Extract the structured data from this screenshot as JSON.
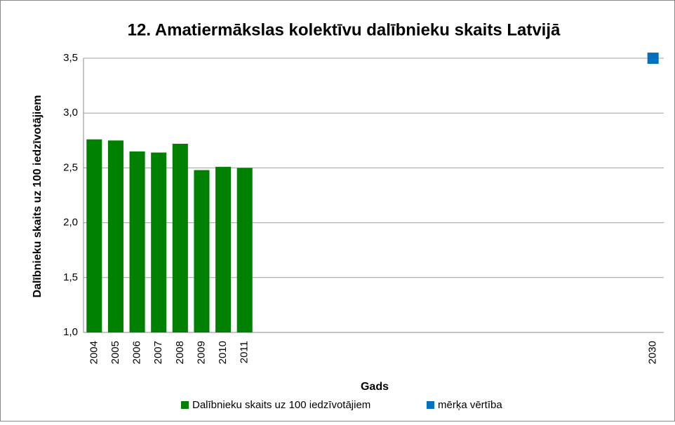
{
  "chart_data": {
    "type": "bar",
    "title": "12. Amatiermākslas kolektīvu dalībnieku skaits Latvijā",
    "x_label": "Gads",
    "y_label": "Dalībnieku skaits uz 100 iedzīvotājiem",
    "categories": [
      "2004",
      "2005",
      "2006",
      "2007",
      "2008",
      "2009",
      "2010",
      "2011",
      null,
      null,
      null,
      null,
      null,
      null,
      null,
      null,
      null,
      null,
      null,
      null,
      null,
      null,
      null,
      null,
      null,
      null,
      "2030"
    ],
    "series": [
      {
        "name": "Dalībnieku skaits uz 100 iedzīvotājiem",
        "type": "bar",
        "color": "#008000",
        "values": [
          2.76,
          2.75,
          2.65,
          2.64,
          2.72,
          2.48,
          2.51,
          2.5,
          null,
          null,
          null,
          null,
          null,
          null,
          null,
          null,
          null,
          null,
          null,
          null,
          null,
          null,
          null,
          null,
          null,
          null,
          null
        ]
      },
      {
        "name": "mērķa vērtība",
        "type": "marker",
        "color": "#0070c0",
        "values": [
          null,
          null,
          null,
          null,
          null,
          null,
          null,
          null,
          null,
          null,
          null,
          null,
          null,
          null,
          null,
          null,
          null,
          null,
          null,
          null,
          null,
          null,
          null,
          null,
          null,
          null,
          3.5
        ]
      }
    ],
    "ylim": [
      1.0,
      3.5
    ],
    "yticks": [
      {
        "value": 1.0,
        "label": "1,0"
      },
      {
        "value": 1.5,
        "label": "1,5"
      },
      {
        "value": 2.0,
        "label": "2,0"
      },
      {
        "value": 2.5,
        "label": "2,5"
      },
      {
        "value": 3.0,
        "label": "3,0"
      },
      {
        "value": 3.5,
        "label": "3,5"
      }
    ],
    "grid": true,
    "legend": "bottom"
  }
}
